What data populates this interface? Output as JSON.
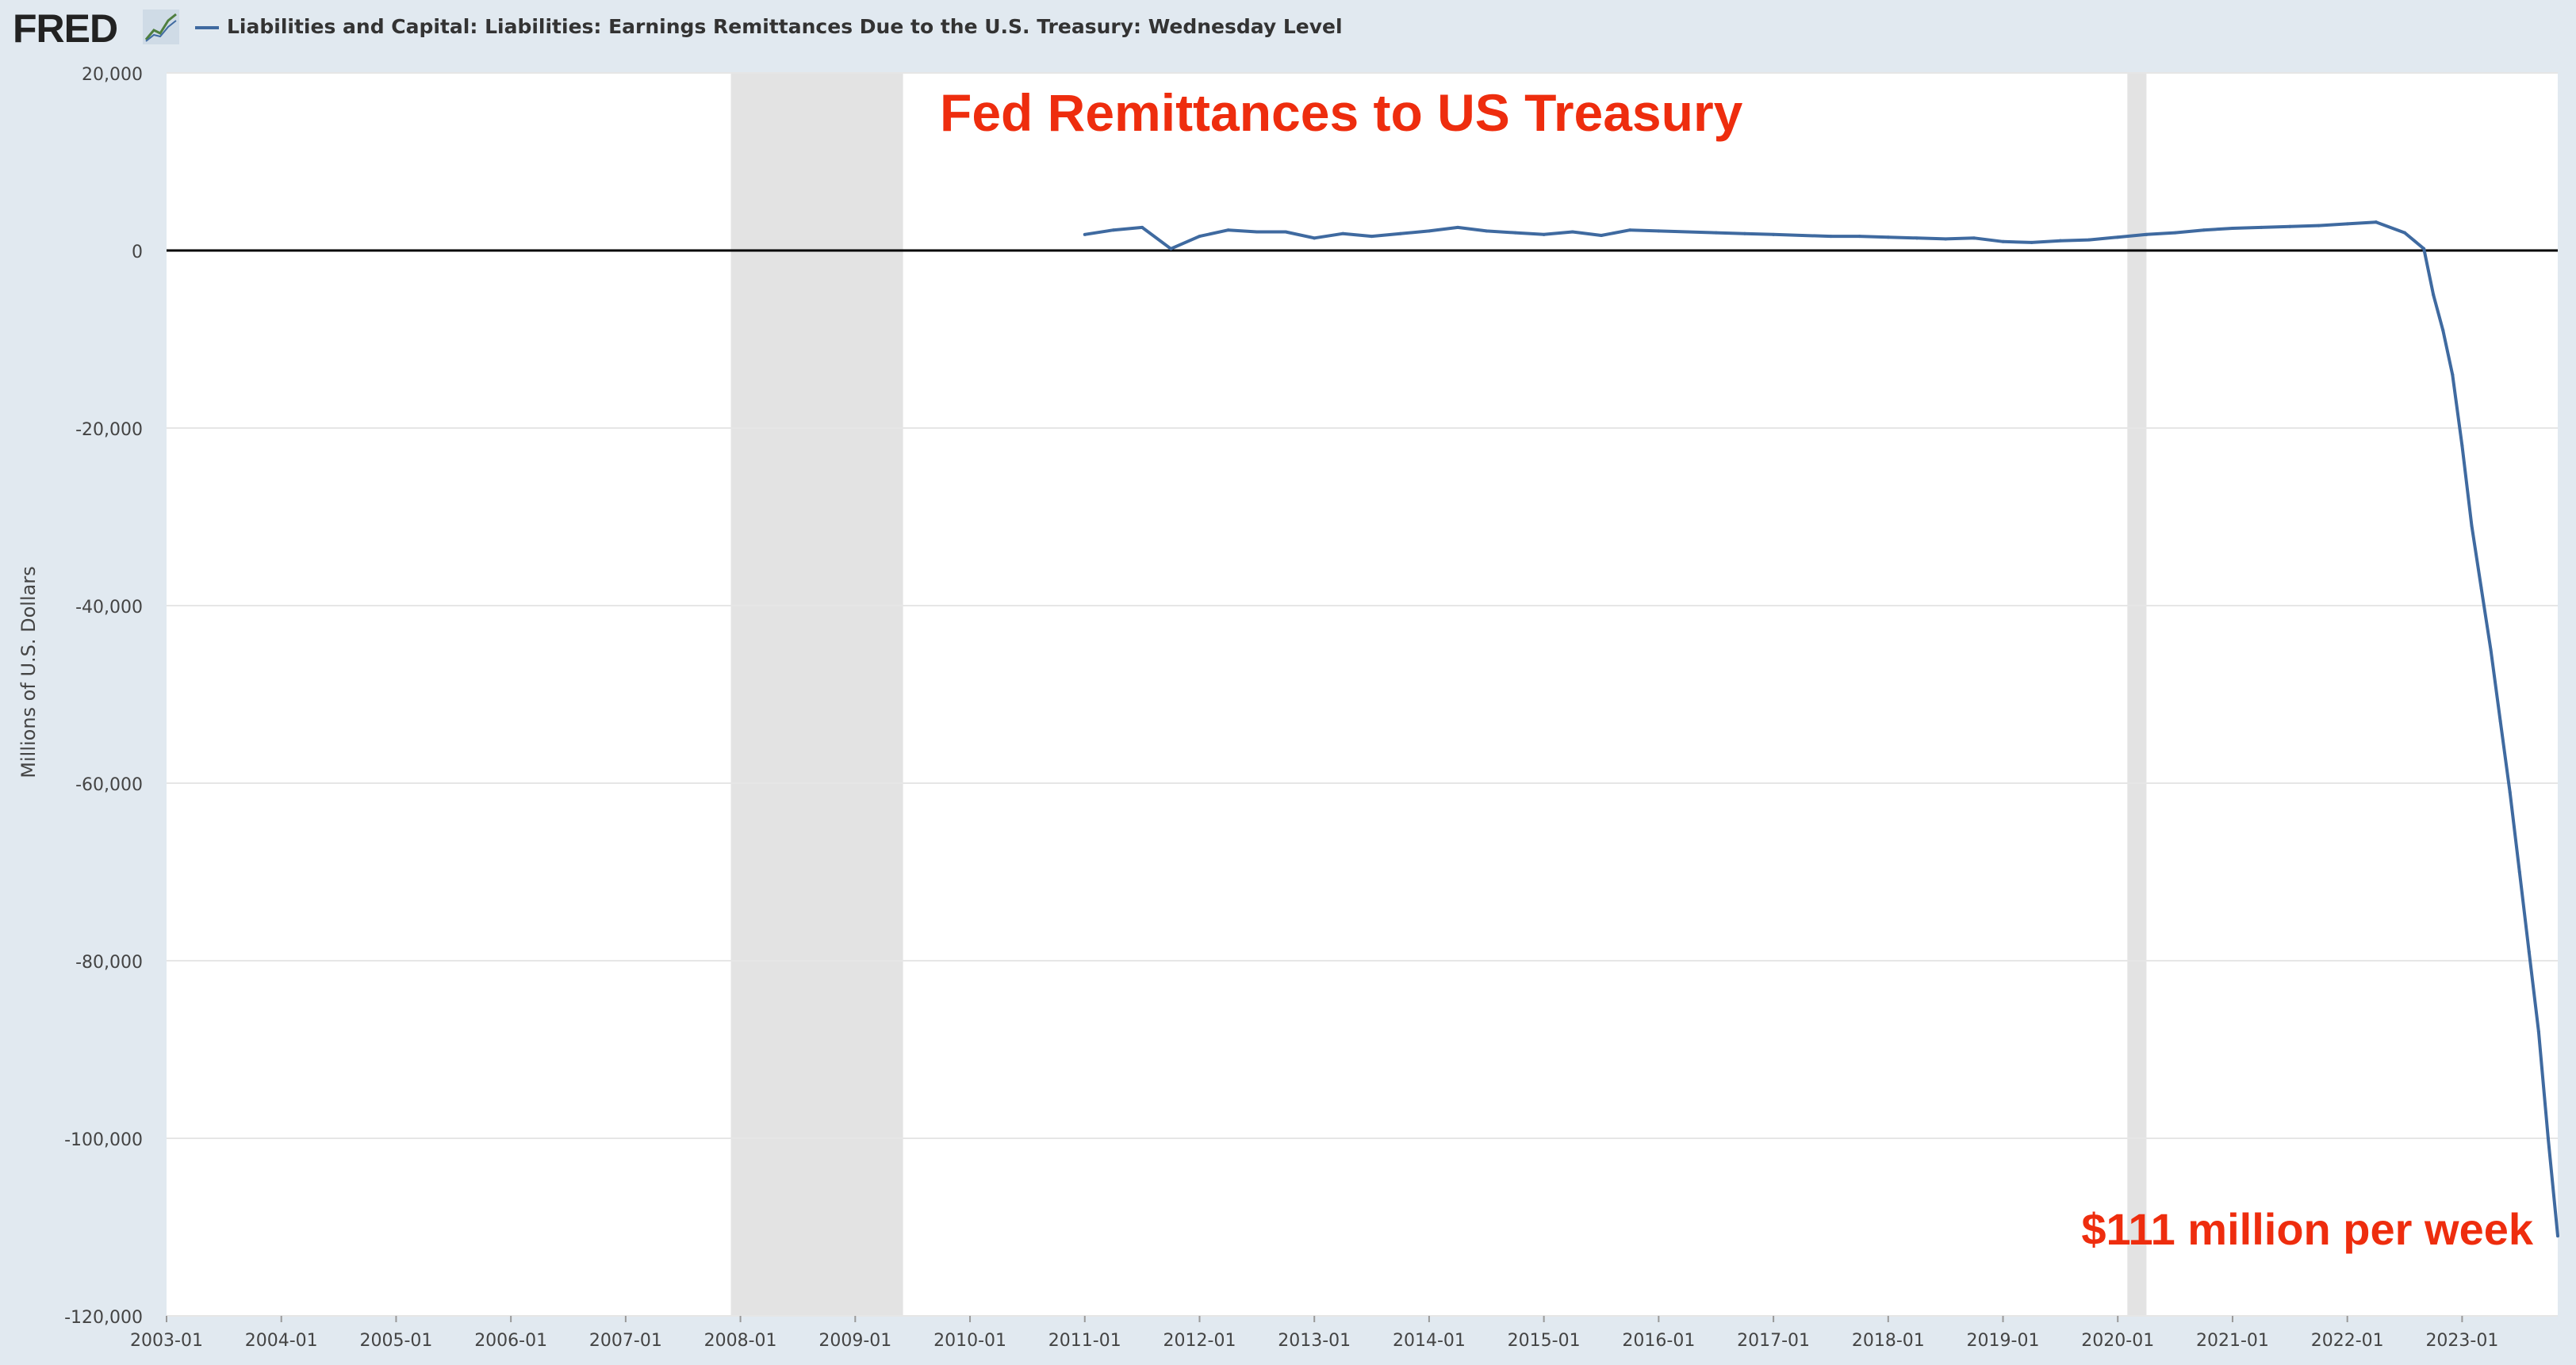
{
  "header": {
    "logo_text": "FRED",
    "series_title": "Liabilities and Capital: Liabilities: Earnings Remittances Due to the U.S. Treasury: Wednesday Level"
  },
  "icons": {
    "logo": "line-chart-icon",
    "legend": "legend-line-icon"
  },
  "colors": {
    "series": "#3f6aa0",
    "annotation": "#ee2d0e",
    "recession": "#e3e3e3",
    "background": "#e1e9f0",
    "plot": "#ffffff"
  },
  "annotations": {
    "title": "Fed Remittances to US Treasury",
    "note": "$111 million per week"
  },
  "chart_data": {
    "type": "line",
    "title": "Fed Remittances to US Treasury",
    "xlabel": "",
    "ylabel": "Millions of U.S. Dollars",
    "xlim": [
      "2003-01",
      "2023-11"
    ],
    "ylim": [
      -120000,
      20000
    ],
    "y_ticks": [
      20000,
      0,
      -20000,
      -40000,
      -60000,
      -80000,
      -100000,
      -120000
    ],
    "y_tick_labels": [
      "20,000",
      "0",
      "-20,000",
      "-40,000",
      "-60,000",
      "-80,000",
      "-100,000",
      "-120,000"
    ],
    "x_tick_labels": [
      "2003-01",
      "2004-01",
      "2005-01",
      "2006-01",
      "2007-01",
      "2008-01",
      "2009-01",
      "2010-01",
      "2011-01",
      "2012-01",
      "2013-01",
      "2014-01",
      "2015-01",
      "2016-01",
      "2017-01",
      "2018-01",
      "2019-01",
      "2020-01",
      "2021-01",
      "2022-01",
      "2023-01"
    ],
    "grid": true,
    "legend": "top-left",
    "recessions": [
      {
        "start": "2007-12",
        "end": "2009-06"
      },
      {
        "start": "2020-02",
        "end": "2020-04"
      }
    ],
    "series": [
      {
        "name": "Liabilities and Capital: Liabilities: Earnings Remittances Due to the U.S. Treasury: Wednesday Level",
        "x": [
          "2011-01",
          "2011-04",
          "2011-07",
          "2011-10",
          "2012-01",
          "2012-04",
          "2012-07",
          "2012-10",
          "2013-01",
          "2013-04",
          "2013-07",
          "2013-10",
          "2014-01",
          "2014-04",
          "2014-07",
          "2014-10",
          "2015-01",
          "2015-04",
          "2015-07",
          "2015-10",
          "2016-01",
          "2016-04",
          "2016-07",
          "2016-10",
          "2017-01",
          "2017-04",
          "2017-07",
          "2017-10",
          "2018-01",
          "2018-04",
          "2018-07",
          "2018-10",
          "2019-01",
          "2019-04",
          "2019-07",
          "2019-10",
          "2020-01",
          "2020-04",
          "2020-07",
          "2020-10",
          "2021-01",
          "2021-04",
          "2021-07",
          "2021-10",
          "2022-01",
          "2022-04",
          "2022-07",
          "2022-09",
          "2022-10",
          "2022-11",
          "2022-12",
          "2023-01",
          "2023-02",
          "2023-03",
          "2023-04",
          "2023-05",
          "2023-06",
          "2023-07",
          "2023-08",
          "2023-09",
          "2023-10",
          "2023-11"
        ],
        "y": [
          1800,
          2300,
          2600,
          200,
          1600,
          2300,
          2100,
          2100,
          1400,
          1900,
          1600,
          1900,
          2200,
          2600,
          2200,
          2000,
          1800,
          2100,
          1700,
          2300,
          2200,
          2100,
          2000,
          1900,
          1800,
          1700,
          1600,
          1600,
          1500,
          1400,
          1300,
          1400,
          1000,
          900,
          1100,
          1200,
          1500,
          1800,
          2000,
          2300,
          2500,
          2600,
          2700,
          2800,
          3000,
          3200,
          2000,
          200,
          -5000,
          -9000,
          -14000,
          -22000,
          -31000,
          -38000,
          -45000,
          -53000,
          -61000,
          -70000,
          -79000,
          -88000,
          -100000,
          -111000
        ]
      }
    ]
  }
}
